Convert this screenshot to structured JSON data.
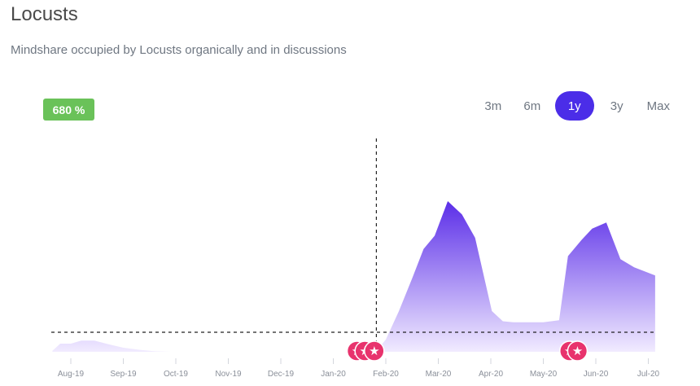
{
  "header": {
    "title": "Locusts",
    "subtitle": "Mindshare occupied by Locusts organically and in discussions"
  },
  "badge": {
    "text": "680 %",
    "color": "#6ac259"
  },
  "ranges": [
    {
      "label": "3m",
      "active": false
    },
    {
      "label": "6m",
      "active": false
    },
    {
      "label": "1y",
      "active": true
    },
    {
      "label": "3y",
      "active": false
    },
    {
      "label": "Max",
      "active": false
    }
  ],
  "colors": {
    "accent": "#4b2de8",
    "area_top": "#5b2ee8",
    "area_bottom": "#f1ebff",
    "event_marker": "#e8336d"
  },
  "chart_data": {
    "type": "area",
    "title": "",
    "x_ticks": [
      "Aug-19",
      "Sep-19",
      "Oct-19",
      "Nov-19",
      "Dec-19",
      "Jan-20",
      "Feb-20",
      "Mar-20",
      "Apr-20",
      "May-20",
      "Jun-20",
      "Jul-20"
    ],
    "series": [
      {
        "name": "Mindshare",
        "x": [
          -0.35,
          -0.2,
          0.0,
          0.2,
          0.45,
          0.75,
          1.0,
          1.3,
          1.6,
          1.9,
          2.2,
          2.5,
          2.8,
          3.1,
          3.4,
          3.7,
          4.0,
          4.3,
          4.6,
          4.9,
          5.2,
          5.5,
          5.75,
          5.83,
          6.0,
          6.25,
          6.5,
          6.72,
          6.93,
          7.18,
          7.45,
          7.7,
          8.02,
          8.23,
          8.43,
          8.7,
          9.0,
          9.3,
          9.47,
          9.73,
          9.93,
          10.2,
          10.47,
          10.73,
          11.13
        ],
        "values": [
          1,
          8,
          8,
          11,
          11,
          7,
          4,
          2,
          0.5,
          0,
          0,
          0,
          0,
          0,
          0,
          0,
          0,
          0,
          0,
          0,
          0,
          0,
          0.5,
          1.5,
          12,
          40,
          72,
          101,
          114,
          148,
          135,
          112,
          40,
          30,
          29,
          29,
          29,
          31,
          94,
          110,
          121,
          127,
          91,
          83,
          75
        ]
      }
    ],
    "baseline_value": 0,
    "vertical_marker_x": 5.82,
    "event_markers": [
      {
        "x": 5.45,
        "symbol": "★"
      },
      {
        "x": 5.6,
        "symbol": "★"
      },
      {
        "x": 5.78,
        "symbol": "★"
      },
      {
        "x": 9.5,
        "symbol": "★"
      },
      {
        "x": 9.65,
        "symbol": "★"
      }
    ],
    "xlabel": "",
    "ylabel": "",
    "ylim": [
      0,
      160
    ],
    "grid": false,
    "legend": false
  }
}
